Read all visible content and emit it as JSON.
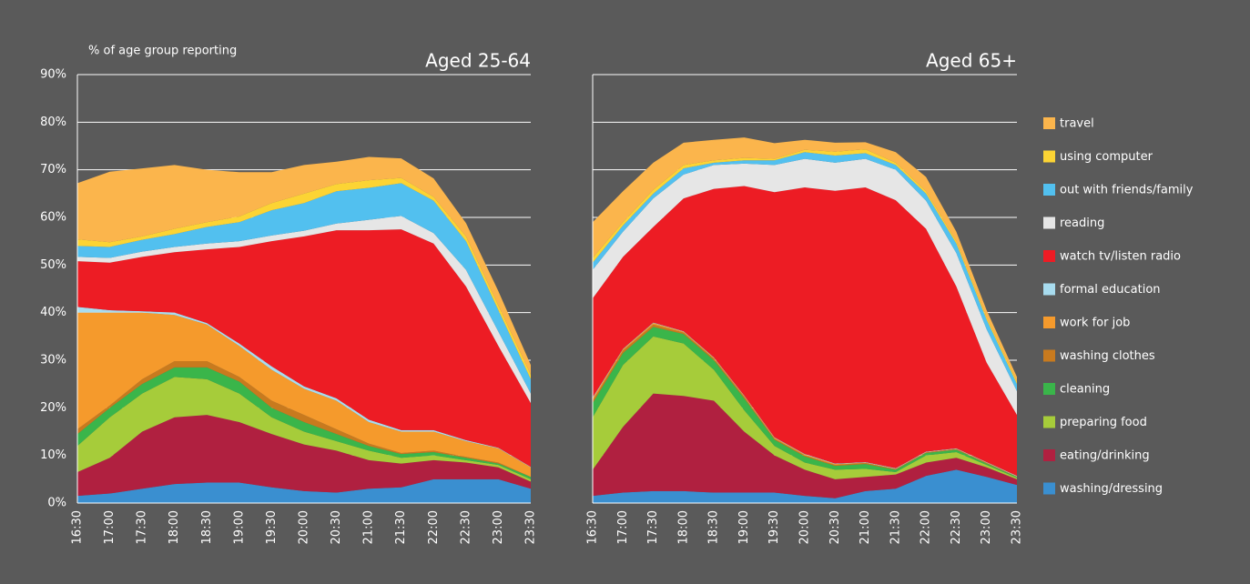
{
  "chart_data": [
    {
      "type": "stacked-area",
      "title": "Aged 25-64",
      "ylabel": "% of age group reporting",
      "categories": [
        "16:30",
        "17:00",
        "17:30",
        "18:00",
        "18:30",
        "19:00",
        "19:30",
        "20:00",
        "20:30",
        "21:00",
        "21:30",
        "22:00",
        "22:30",
        "23:00",
        "23:30"
      ],
      "ylim": [
        0,
        90
      ],
      "yticks": [
        {
          "value": 0,
          "label": "0%"
        },
        {
          "value": 10,
          "label": "10%"
        },
        {
          "value": 20,
          "label": "20%"
        },
        {
          "value": 30,
          "label": "30%"
        },
        {
          "value": 40,
          "label": "40%"
        },
        {
          "value": 50,
          "label": "50%"
        },
        {
          "value": 60,
          "label": "60%"
        },
        {
          "value": 70,
          "label": "70%"
        },
        {
          "value": 80,
          "label": "80%"
        },
        {
          "value": 90,
          "label": "90%"
        }
      ],
      "grid": true,
      "series": [
        {
          "name": "washing/dressing",
          "color": "#3a8fd0",
          "values": [
            1.5,
            2,
            3,
            4,
            4.3,
            4.3,
            3.3,
            2.5,
            2.2,
            3,
            3.3,
            5,
            5,
            5,
            3
          ]
        },
        {
          "name": "eating/drinking",
          "color": "#b02040",
          "values": [
            5,
            7.5,
            12,
            14,
            14.2,
            12.7,
            11.2,
            9.8,
            8.8,
            6,
            5,
            4,
            3.5,
            2.5,
            1.5
          ]
        },
        {
          "name": "preparing food",
          "color": "#a6cc3a",
          "values": [
            5.5,
            8.5,
            8,
            8.5,
            7.5,
            6,
            3.5,
            2.7,
            2,
            2,
            1.2,
            1,
            0.5,
            0.5,
            0.5
          ]
        },
        {
          "name": "cleaning",
          "color": "#3ab54a",
          "values": [
            2.5,
            2,
            2,
            2,
            2.5,
            2.5,
            2,
            2,
            1.5,
            1,
            0.8,
            0.7,
            0.5,
            0.3,
            0.5
          ]
        },
        {
          "name": "washing clothes",
          "color": "#c87a1e",
          "values": [
            1,
            0.5,
            1,
            1.3,
            1.3,
            1,
            1.5,
            1.5,
            1,
            0.5,
            0.2,
            0.3,
            0.2,
            0.2,
            0
          ]
        },
        {
          "name": "work for job",
          "color": "#f59a2c",
          "values": [
            24.5,
            19.5,
            14,
            9.7,
            7.7,
            6.5,
            6.5,
            5.5,
            6,
            4.5,
            4.5,
            4,
            3.3,
            3,
            2
          ]
        },
        {
          "name": "formal education",
          "color": "#a8dcef",
          "values": [
            1.2,
            0.5,
            0.3,
            0.5,
            0.3,
            0.5,
            0.7,
            0.5,
            0.5,
            0.5,
            0.3,
            0.3,
            0.2,
            0.1,
            0.1
          ]
        },
        {
          "name": "watch tv/listen radio",
          "color": "#ed1c24",
          "values": [
            9.6,
            10,
            11.4,
            12.7,
            15.5,
            20.3,
            26.3,
            31.5,
            35.3,
            39.8,
            42.2,
            39.2,
            32.3,
            21.4,
            13.4
          ]
        },
        {
          "name": "reading",
          "color": "#e6e6e6",
          "values": [
            0.9,
            1,
            1.1,
            1.1,
            1.2,
            1.2,
            1.2,
            1.2,
            1.4,
            2.2,
            2.8,
            2.2,
            3.5,
            3,
            2
          ]
        },
        {
          "name": "out with friends/family",
          "color": "#52c0ef",
          "values": [
            2.3,
            2.3,
            2.5,
            2.7,
            3.5,
            4,
            5.3,
            5.8,
            6.8,
            6.7,
            6.9,
            6.8,
            6,
            4.5,
            3
          ]
        },
        {
          "name": "using computer",
          "color": "#fcd434",
          "values": [
            1.4,
            1,
            0.7,
            1.1,
            1,
            1.2,
            1.5,
            2,
            1.5,
            1.6,
            1.1,
            0.8,
            1,
            1,
            1
          ]
        },
        {
          "name": "travel",
          "color": "#fbb54c",
          "values": [
            11.8,
            14.8,
            14.3,
            13.4,
            11,
            9.3,
            6.5,
            6,
            4.7,
            4.9,
            4.1,
            3.9,
            2.8,
            3,
            2
          ]
        }
      ]
    },
    {
      "type": "stacked-area",
      "title": "Aged 65+",
      "categories": [
        "16:30",
        "17:00",
        "17:30",
        "18:00",
        "18:30",
        "19:00",
        "19:30",
        "20:00",
        "20:30",
        "21:00",
        "21:30",
        "22:00",
        "22:30",
        "23:00",
        "23:30"
      ],
      "ylim": [
        0,
        90
      ],
      "yticks": [
        0,
        10,
        20,
        30,
        40,
        50,
        60,
        70,
        80,
        90
      ],
      "grid": true,
      "legend": "right",
      "series": [
        {
          "name": "washing/dressing",
          "color": "#3a8fd0",
          "values": [
            1.5,
            2.2,
            2.5,
            2.5,
            2.2,
            2.2,
            2.2,
            1.5,
            1,
            2.5,
            3,
            5.7,
            7,
            5.5,
            3.8
          ]
        },
        {
          "name": "eating/drinking",
          "color": "#b02040",
          "values": [
            5.5,
            13.8,
            20.5,
            20,
            19.3,
            12.8,
            7.8,
            5.5,
            4,
            3,
            3,
            2.8,
            2.5,
            2,
            1.2
          ]
        },
        {
          "name": "preparing food",
          "color": "#a6cc3a",
          "values": [
            11,
            13,
            12,
            11,
            6.5,
            4.5,
            2,
            1.5,
            2,
            1.7,
            0.5,
            1.5,
            1.2,
            0.5,
            0.3
          ]
        },
        {
          "name": "cleaning",
          "color": "#3ab54a",
          "values": [
            3,
            2.5,
            2,
            2,
            2,
            2.5,
            1.3,
            1.3,
            0.8,
            1,
            0.5,
            0.5,
            0.5,
            0.3,
            0.2
          ]
        },
        {
          "name": "washing clothes",
          "color": "#c87a1e",
          "values": [
            0.5,
            0.5,
            0.5,
            0.3,
            0.3,
            0.3,
            0.2,
            0.2,
            0.2,
            0.2,
            0.1,
            0.1,
            0.1,
            0.1,
            0
          ]
        },
        {
          "name": "work for job",
          "color": "#f59a2c",
          "values": [
            0.5,
            0.3,
            0.3,
            0.2,
            0.2,
            0.2,
            0.2,
            0.2,
            0.2,
            0.1,
            0.1,
            0.1,
            0.1,
            0.1,
            0.1
          ]
        },
        {
          "name": "formal education",
          "color": "#a8dcef",
          "values": [
            0.2,
            0.1,
            0.1,
            0.1,
            0.1,
            0.1,
            0.1,
            0.1,
            0.1,
            0.1,
            0.1,
            0.1,
            0.1,
            0.1,
            0.1
          ]
        },
        {
          "name": "watch tv/listen radio",
          "color": "#ed1c24",
          "values": [
            20.8,
            19.3,
            20.1,
            27.9,
            35.4,
            44,
            51.5,
            56,
            57.3,
            57.7,
            56.3,
            46.8,
            34,
            20.9,
            12.8
          ]
        },
        {
          "name": "reading",
          "color": "#e6e6e6",
          "values": [
            6,
            5.3,
            6,
            5,
            5,
            4.7,
            5.7,
            6,
            5.9,
            6,
            6.4,
            5.9,
            7,
            7,
            5
          ]
        },
        {
          "name": "out with friends/family",
          "color": "#52c0ef",
          "values": [
            1.5,
            1.3,
            1,
            1.3,
            0.5,
            0.7,
            1,
            1.4,
            1.5,
            1.2,
            1,
            1.5,
            2,
            2,
            1.5
          ]
        },
        {
          "name": "using computer",
          "color": "#fcd434",
          "values": [
            1,
            0.7,
            0.8,
            0.7,
            0.5,
            0.5,
            0.3,
            0.5,
            0.8,
            0.8,
            0.5,
            0.5,
            0.5,
            0.5,
            0.5
          ]
        },
        {
          "name": "travel",
          "color": "#fbb54c",
          "values": [
            7.5,
            6.5,
            5.7,
            4.7,
            4.3,
            4.3,
            3.3,
            2.1,
            1.9,
            1.5,
            2.2,
            3,
            2,
            1.5,
            1
          ]
        }
      ]
    }
  ]
}
